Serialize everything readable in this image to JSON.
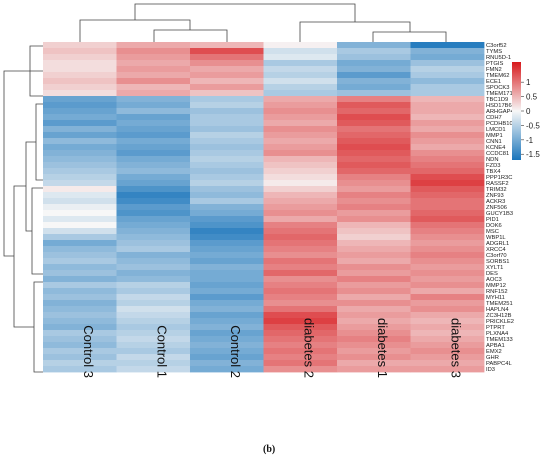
{
  "panel_label": "(b)",
  "colors": {
    "high": "#d7191c",
    "mid": "#f7f7f7",
    "low": "#1a75bb"
  },
  "chart_data": {
    "type": "heatmap",
    "columns": [
      "Control 3",
      "Control 1",
      "Control 2",
      "diabetes 2",
      "diabetes 1",
      "diabetes 3"
    ],
    "rows": [
      "C3orf52",
      "TYMS",
      "RNU5D-1",
      "PTGIS",
      "FMN2",
      "TMEM62",
      "ECE1",
      "SPOCK3",
      "TMEM171",
      "TBC1D9",
      "HSD17B6",
      "ARHGAP42",
      "CDH7",
      "PCDHB10",
      "LMCD1",
      "MMP1",
      "CNN1",
      "KCNE4",
      "CCDC81",
      "NDN",
      "FZD3",
      "TBX4",
      "PPP1R3C",
      "RASSF2",
      "TRIM32",
      "ZNF93",
      "ACKR3",
      "ZNF506",
      "GUCY1B3",
      "PID1",
      "DOK6",
      "MSC",
      "WBP1L",
      "ADGRL1",
      "XRCC4",
      "C3orf70",
      "SORBS1",
      "XYLT1",
      "DES",
      "AOC3",
      "MMP12",
      "RNF152",
      "MYH11",
      "TMEM251",
      "HAPLN4",
      "ZC3H12B",
      "PRICKLE2",
      "PTPRT",
      "PLXNA4",
      "TMEM133",
      "APBA1",
      "EMX2",
      "GHR",
      "PABPC4L",
      "ID3"
    ],
    "legend": {
      "ticks": [
        1,
        0.5,
        0,
        -0.5,
        -1,
        -1.5
      ],
      "range": [
        -1.7,
        1.7
      ]
    },
    "values": [
      [
        0.3,
        0.6,
        0.5,
        0.05,
        -0.9,
        -1.6
      ],
      [
        0.4,
        0.8,
        1.3,
        -0.3,
        -0.6,
        -0.9
      ],
      [
        0.3,
        0.7,
        1.0,
        -0.2,
        -0.7,
        -1.0
      ],
      [
        0.2,
        0.6,
        0.8,
        -0.6,
        -1.0,
        -0.7
      ],
      [
        0.2,
        0.7,
        0.6,
        -0.4,
        -0.9,
        -0.5
      ],
      [
        0.3,
        0.6,
        0.7,
        -0.5,
        -1.2,
        -0.6
      ],
      [
        0.4,
        0.8,
        0.5,
        -0.3,
        -0.9,
        -0.8
      ],
      [
        0.3,
        0.5,
        0.7,
        -0.5,
        -1.0,
        -0.6
      ],
      [
        0.2,
        0.6,
        0.4,
        -0.6,
        -0.7,
        -0.6
      ],
      [
        -1.1,
        -0.9,
        -0.6,
        0.6,
        0.9,
        0.5
      ],
      [
        -1.2,
        -1.0,
        -0.5,
        0.7,
        1.2,
        0.6
      ],
      [
        -1.1,
        -0.8,
        -0.7,
        0.8,
        1.1,
        0.6
      ],
      [
        -1.0,
        -1.1,
        -0.6,
        0.7,
        1.3,
        0.5
      ],
      [
        -1.2,
        -1.0,
        -0.6,
        0.6,
        1.2,
        0.7
      ],
      [
        -0.9,
        -1.1,
        -0.7,
        0.8,
        1.0,
        0.6
      ],
      [
        -1.1,
        -1.2,
        -0.5,
        0.7,
        1.1,
        0.8
      ],
      [
        -0.8,
        -1.0,
        -0.6,
        0.6,
        1.2,
        0.7
      ],
      [
        -1.0,
        -1.1,
        -0.7,
        0.7,
        1.3,
        0.6
      ],
      [
        -0.9,
        -1.2,
        -0.6,
        0.8,
        1.2,
        0.8
      ],
      [
        -0.8,
        -1.0,
        -0.5,
        0.5,
        1.1,
        0.9
      ],
      [
        -0.7,
        -0.9,
        -0.6,
        0.4,
        1.2,
        1.0
      ],
      [
        -0.6,
        -0.8,
        -0.7,
        0.3,
        1.1,
        1.1
      ],
      [
        -0.5,
        -1.0,
        -0.6,
        0.2,
        0.9,
        1.3
      ],
      [
        -0.4,
        -1.1,
        -0.5,
        0.1,
        0.8,
        1.4
      ],
      [
        0.1,
        -1.3,
        -0.7,
        0.3,
        0.7,
        1.2
      ],
      [
        -0.2,
        -1.5,
        -0.8,
        0.5,
        0.9,
        1.1
      ],
      [
        -0.3,
        -1.4,
        -0.6,
        0.6,
        0.8,
        1.0
      ],
      [
        -0.1,
        -1.2,
        -0.9,
        0.7,
        0.9,
        1.0
      ],
      [
        0.0,
        -1.3,
        -1.0,
        0.8,
        0.7,
        1.1
      ],
      [
        -0.2,
        -1.1,
        -1.2,
        0.6,
        0.8,
        1.2
      ],
      [
        0.0,
        -1.0,
        -1.3,
        0.9,
        0.5,
        1.0
      ],
      [
        -0.3,
        -0.9,
        -1.5,
        1.0,
        0.4,
        0.9
      ],
      [
        -0.6,
        -0.8,
        -1.4,
        1.1,
        0.3,
        0.8
      ],
      [
        -1.0,
        -0.7,
        -1.2,
        1.0,
        0.5,
        0.7
      ],
      [
        -0.8,
        -0.6,
        -1.1,
        0.9,
        0.6,
        0.8
      ],
      [
        -0.7,
        -0.9,
        -1.0,
        0.8,
        0.7,
        0.9
      ],
      [
        -0.6,
        -0.8,
        -1.1,
        1.0,
        0.6,
        0.8
      ],
      [
        -0.8,
        -0.7,
        -0.9,
        0.9,
        0.8,
        0.7
      ],
      [
        -0.7,
        -0.9,
        -1.0,
        1.1,
        0.7,
        0.8
      ],
      [
        -0.9,
        -0.8,
        -1.0,
        0.8,
        0.9,
        0.7
      ],
      [
        -0.6,
        -0.5,
        -1.1,
        0.9,
        0.7,
        0.8
      ],
      [
        -0.8,
        -0.6,
        -1.0,
        1.0,
        0.8,
        0.6
      ],
      [
        -0.7,
        -0.4,
        -1.2,
        0.9,
        0.6,
        0.9
      ],
      [
        -0.9,
        -0.5,
        -1.0,
        0.8,
        0.8,
        0.7
      ],
      [
        -0.8,
        -0.3,
        -0.9,
        1.0,
        0.6,
        0.8
      ],
      [
        -0.7,
        -0.4,
        -1.1,
        1.3,
        0.7,
        0.6
      ],
      [
        -0.8,
        -0.5,
        -1.0,
        1.4,
        0.6,
        0.5
      ],
      [
        -0.9,
        -0.6,
        -0.9,
        1.2,
        0.7,
        0.6
      ],
      [
        -0.6,
        -0.5,
        -1.1,
        1.1,
        0.8,
        0.5
      ],
      [
        -0.7,
        -0.4,
        -1.0,
        1.0,
        0.9,
        0.6
      ],
      [
        -0.8,
        -0.5,
        -0.9,
        0.9,
        0.8,
        0.7
      ],
      [
        -0.6,
        -0.6,
        -1.0,
        1.0,
        0.7,
        0.8
      ],
      [
        -0.7,
        -0.4,
        -1.1,
        0.9,
        0.8,
        0.7
      ],
      [
        -0.5,
        -0.5,
        -0.9,
        1.0,
        0.6,
        0.6
      ],
      [
        -0.6,
        -0.4,
        -1.0,
        0.8,
        0.7,
        0.7
      ]
    ]
  }
}
